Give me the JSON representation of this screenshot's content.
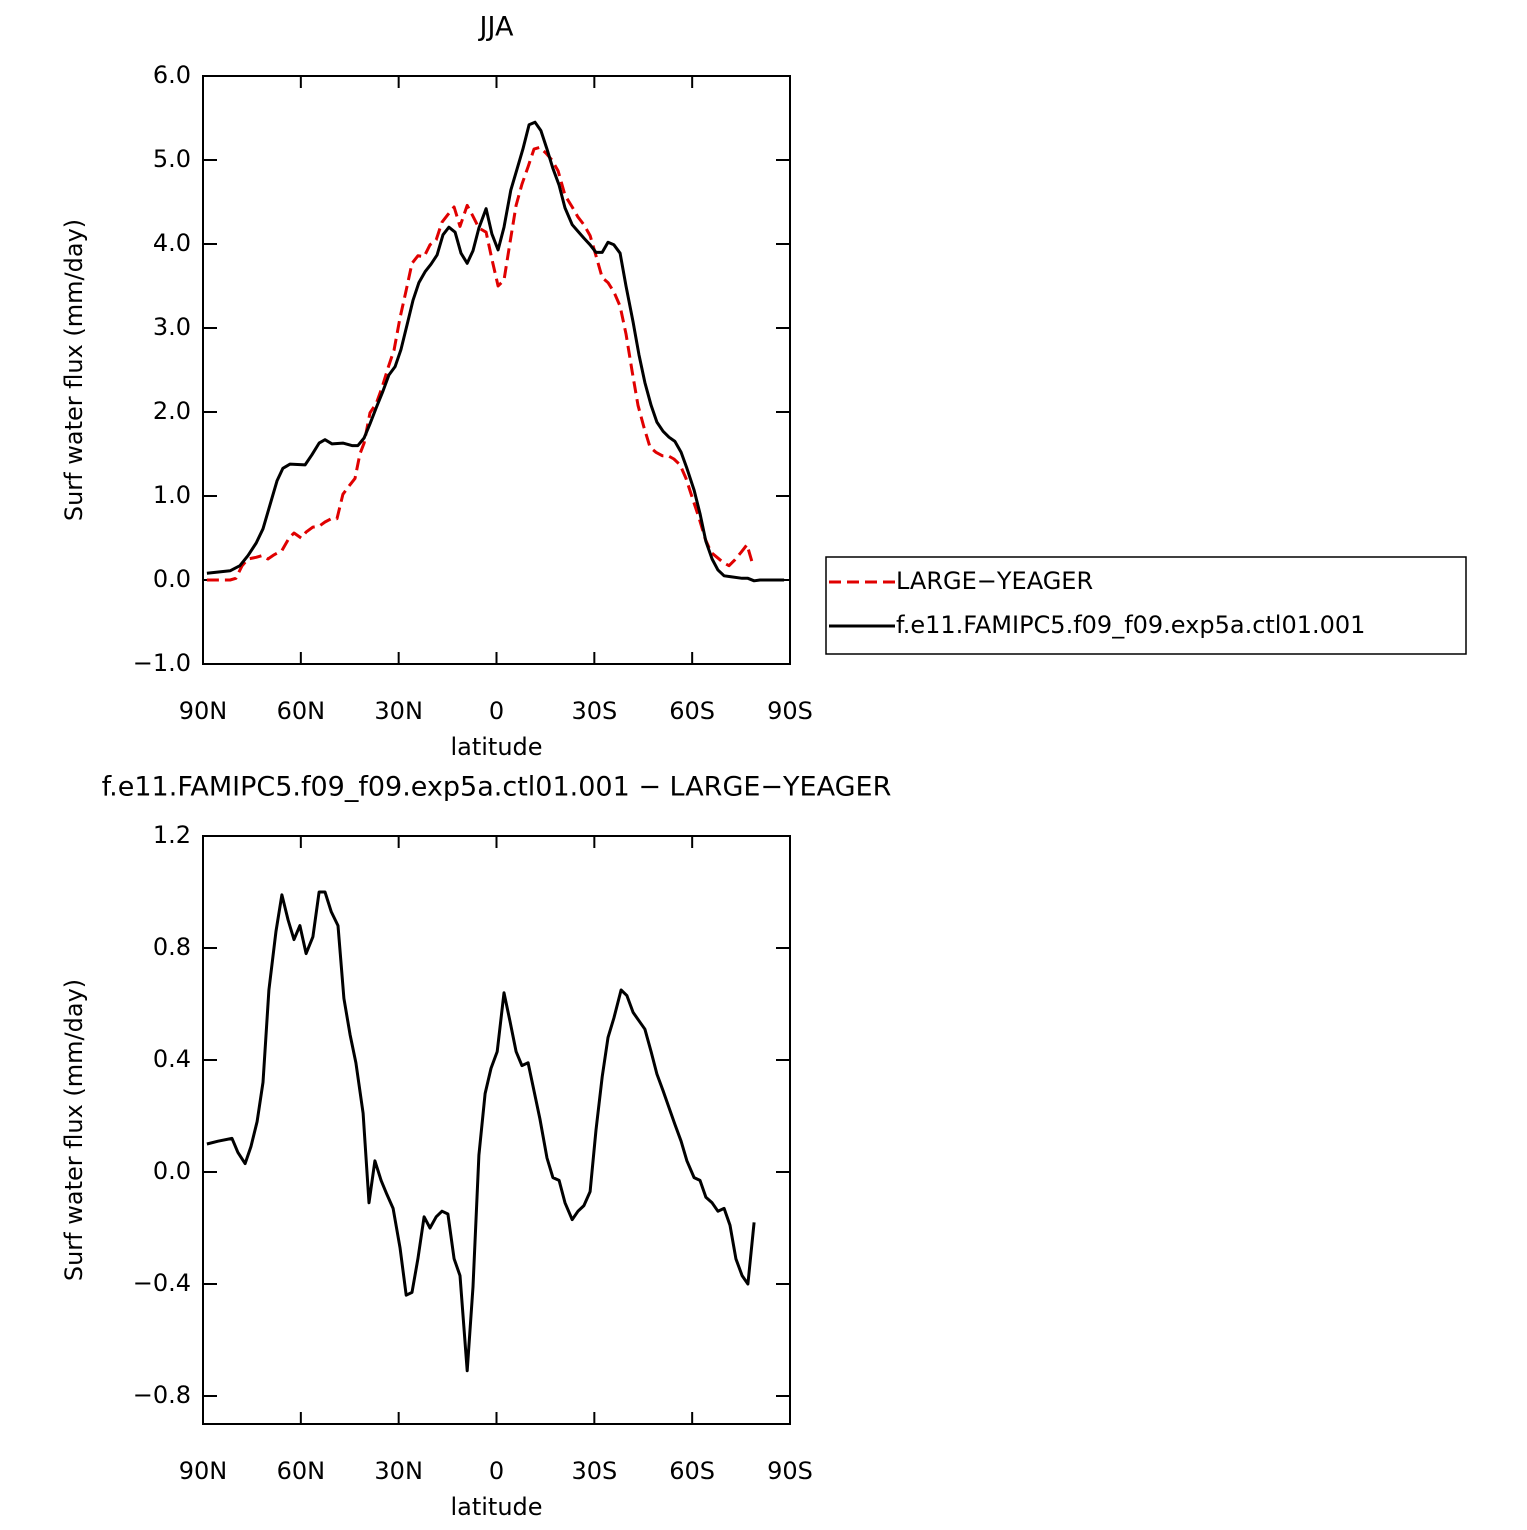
{
  "chart_data": [
    {
      "type": "line",
      "title": "JJA",
      "xlabel": "latitude",
      "ylabel": "Surf water flux (mm/day)",
      "xlim": [
        90,
        -90
      ],
      "xticks": [
        {
          "value": 90,
          "label": "90N"
        },
        {
          "value": 60,
          "label": "60N"
        },
        {
          "value": 30,
          "label": "30N"
        },
        0,
        {
          "value": -30,
          "label": "30S"
        },
        {
          "value": -60,
          "label": "60S"
        },
        {
          "value": -90,
          "label": "90S"
        }
      ],
      "ylim": [
        -1,
        6
      ],
      "yticks": [
        {
          "value": -1,
          "label": "−1.0"
        },
        {
          "value": 0,
          "label": "0.0"
        },
        {
          "value": 1,
          "label": "1.0"
        },
        {
          "value": 2,
          "label": "2.0"
        },
        {
          "value": 3,
          "label": "3.0"
        },
        {
          "value": 4,
          "label": "4.0"
        },
        {
          "value": 5,
          "label": "5.0"
        },
        {
          "value": 6,
          "label": "6.0"
        }
      ],
      "legend": "right",
      "series": [
        {
          "name": "LARGE−YEAGER",
          "color": "#e00000",
          "line_style": "dashed",
          "x": [
            88.8,
            81.7,
            79.9,
            78.0,
            76.2,
            73.7,
            71.9,
            70.1,
            68.2,
            65.8,
            63.6,
            62.1,
            59.9,
            58.4,
            56.3,
            54.4,
            52.6,
            50.7,
            48.9,
            47.1,
            45.2,
            43.4,
            41.9,
            40.6,
            38.8,
            36.9,
            35.1,
            33.3,
            31.4,
            29.6,
            27.7,
            25.9,
            24.1,
            22.2,
            20.4,
            18.5,
            16.7,
            14.9,
            13.0,
            11.2,
            9.0,
            7.2,
            5.4,
            3.2,
            1.4,
            -0.5,
            -2.3,
            -4.1,
            -6.0,
            -7.8,
            -9.7,
            -11.5,
            -13.3,
            -15.2,
            -17.0,
            -18.9,
            -21.0,
            -23.2,
            -25.0,
            -26.8,
            -28.7,
            -30.5,
            -32.4,
            -34.2,
            -36.0,
            -37.9,
            -39.7,
            -41.6,
            -43.4,
            -45.2,
            -47.1,
            -48.9,
            -50.8,
            -52.6,
            -54.4,
            -56.3,
            -58.1,
            -60.3,
            -62.1,
            -64.0,
            -65.8,
            -67.6,
            -69.5,
            -71.3,
            -73.1,
            -75.0,
            -76.8,
            -78.7
          ],
          "values": [
            0.0,
            0.0,
            0.02,
            0.17,
            0.25,
            0.27,
            0.29,
            0.25,
            0.3,
            0.35,
            0.5,
            0.56,
            0.5,
            0.57,
            0.63,
            0.64,
            0.69,
            0.73,
            0.73,
            1.02,
            1.12,
            1.21,
            1.5,
            1.63,
            1.99,
            2.1,
            2.29,
            2.52,
            2.74,
            3.12,
            3.45,
            3.77,
            3.86,
            3.85,
            3.99,
            4.05,
            4.26,
            4.35,
            4.44,
            4.21,
            4.46,
            4.33,
            4.19,
            4.14,
            3.82,
            3.5,
            3.57,
            4.01,
            4.46,
            4.71,
            4.92,
            5.13,
            5.15,
            5.08,
            5.0,
            4.87,
            4.58,
            4.44,
            4.32,
            4.23,
            4.1,
            3.86,
            3.6,
            3.54,
            3.43,
            3.26,
            2.93,
            2.48,
            2.08,
            1.82,
            1.58,
            1.52,
            1.48,
            1.48,
            1.44,
            1.37,
            1.21,
            0.95,
            0.74,
            0.49,
            0.33,
            0.27,
            0.21,
            0.17,
            0.24,
            0.33,
            0.42,
            0.17
          ]
        },
        {
          "name": "f.e11.FAMIPC5.f09_f09.exp5a.ctl01.001",
          "color": "#000000",
          "line_style": "solid",
          "x": [
            88.8,
            81.7,
            78.7,
            76.2,
            73.7,
            71.6,
            69.5,
            67.3,
            65.5,
            63.3,
            58.7,
            56.6,
            54.4,
            52.6,
            50.4,
            47.1,
            44.3,
            42.5,
            40.6,
            38.8,
            36.9,
            34.8,
            33.0,
            31.1,
            29.3,
            27.4,
            25.6,
            23.8,
            21.9,
            20.1,
            18.2,
            16.4,
            14.6,
            12.7,
            10.9,
            9.0,
            7.2,
            5.4,
            3.2,
            1.4,
            -0.5,
            -2.3,
            -4.4,
            -6.3,
            -8.1,
            -10.0,
            -11.8,
            -13.6,
            -15.5,
            -17.3,
            -19.2,
            -21.0,
            -23.2,
            -25.0,
            -26.8,
            -28.7,
            -30.5,
            -32.4,
            -34.2,
            -36.0,
            -37.9,
            -39.7,
            -41.9,
            -43.7,
            -45.5,
            -47.4,
            -49.2,
            -51.1,
            -52.9,
            -54.7,
            -56.6,
            -58.4,
            -60.6,
            -62.4,
            -64.2,
            -66.1,
            -67.9,
            -69.8,
            -71.6,
            -75.3,
            -77.1,
            -79.0,
            -80.8,
            -88.2
          ],
          "values": [
            0.08,
            0.11,
            0.17,
            0.29,
            0.44,
            0.61,
            0.89,
            1.18,
            1.33,
            1.38,
            1.37,
            1.49,
            1.63,
            1.67,
            1.62,
            1.63,
            1.6,
            1.6,
            1.69,
            1.86,
            2.05,
            2.25,
            2.44,
            2.54,
            2.74,
            3.04,
            3.33,
            3.54,
            3.67,
            3.76,
            3.87,
            4.11,
            4.2,
            4.14,
            3.89,
            3.77,
            3.92,
            4.19,
            4.42,
            4.12,
            3.93,
            4.2,
            4.64,
            4.89,
            5.13,
            5.42,
            5.45,
            5.35,
            5.13,
            4.9,
            4.7,
            4.43,
            4.23,
            4.15,
            4.07,
            3.99,
            3.9,
            3.9,
            4.02,
            3.99,
            3.89,
            3.5,
            3.07,
            2.68,
            2.35,
            2.08,
            1.88,
            1.77,
            1.7,
            1.65,
            1.52,
            1.33,
            1.07,
            0.79,
            0.46,
            0.25,
            0.12,
            0.05,
            0.04,
            0.02,
            0.02,
            -0.01,
            0.0,
            0.0
          ]
        }
      ]
    },
    {
      "type": "line",
      "title": "f.e11.FAMIPC5.f09_f09.exp5a.ctl01.001 − LARGE−YEAGER",
      "xlabel": "latitude",
      "ylabel": "Surf water flux (mm/day)",
      "xlim": [
        90,
        -90
      ],
      "xticks": [
        {
          "value": 90,
          "label": "90N"
        },
        {
          "value": 60,
          "label": "60N"
        },
        {
          "value": 30,
          "label": "30N"
        },
        0,
        {
          "value": -30,
          "label": "30S"
        },
        {
          "value": -60,
          "label": "60S"
        },
        {
          "value": -90,
          "label": "90S"
        }
      ],
      "ylim": [
        -0.9,
        1.2
      ],
      "yticks": [
        {
          "value": -0.8,
          "label": "−0.8"
        },
        {
          "value": -0.4,
          "label": "−0.4"
        },
        {
          "value": 0,
          "label": "0.0"
        },
        0.4,
        0.8,
        1.2
      ],
      "series": [
        {
          "color": "#000000",
          "line_style": "solid",
          "x": [
            88.8,
            85.4,
            81.1,
            79.3,
            77.1,
            75.3,
            73.4,
            71.6,
            69.8,
            67.6,
            65.8,
            63.9,
            62.1,
            60.3,
            58.4,
            56.3,
            54.4,
            52.6,
            50.7,
            48.6,
            46.8,
            44.9,
            43.1,
            40.9,
            39.1,
            37.3,
            35.4,
            33.6,
            31.7,
            29.6,
            27.7,
            25.9,
            24.1,
            22.2,
            20.4,
            18.5,
            16.7,
            14.9,
            13.0,
            11.2,
            9.0,
            7.2,
            5.4,
            3.5,
            1.7,
            -0.2,
            -2.3,
            -4.1,
            -6.0,
            -7.8,
            -9.7,
            -11.5,
            -13.3,
            -15.5,
            -17.3,
            -19.2,
            -21.0,
            -23.2,
            -25.0,
            -26.8,
            -28.7,
            -30.5,
            -32.4,
            -34.2,
            -36.0,
            -38.2,
            -40.0,
            -41.9,
            -43.7,
            -45.5,
            -47.4,
            -49.2,
            -51.1,
            -52.9,
            -54.7,
            -56.6,
            -58.4,
            -60.6,
            -62.4,
            -64.2,
            -66.1,
            -67.9,
            -69.8,
            -71.6,
            -73.4,
            -75.3,
            -77.1,
            -79.0
          ],
          "values": [
            0.1,
            0.11,
            0.12,
            0.07,
            0.03,
            0.09,
            0.18,
            0.32,
            0.65,
            0.86,
            0.99,
            0.9,
            0.83,
            0.88,
            0.78,
            0.84,
            1.0,
            1.0,
            0.93,
            0.88,
            0.62,
            0.49,
            0.39,
            0.21,
            -0.11,
            0.04,
            -0.03,
            -0.08,
            -0.13,
            -0.27,
            -0.44,
            -0.43,
            -0.31,
            -0.16,
            -0.2,
            -0.16,
            -0.14,
            -0.15,
            -0.31,
            -0.37,
            -0.71,
            -0.41,
            0.06,
            0.28,
            0.37,
            0.43,
            0.64,
            0.54,
            0.43,
            0.38,
            0.39,
            0.29,
            0.19,
            0.05,
            -0.02,
            -0.03,
            -0.11,
            -0.17,
            -0.14,
            -0.12,
            -0.07,
            0.15,
            0.34,
            0.48,
            0.55,
            0.65,
            0.63,
            0.57,
            0.54,
            0.51,
            0.43,
            0.35,
            0.29,
            0.23,
            0.17,
            0.11,
            0.04,
            -0.02,
            -0.03,
            -0.09,
            -0.11,
            -0.14,
            -0.13,
            -0.19,
            -0.31,
            -0.37,
            -0.4,
            -0.18
          ]
        }
      ]
    }
  ]
}
